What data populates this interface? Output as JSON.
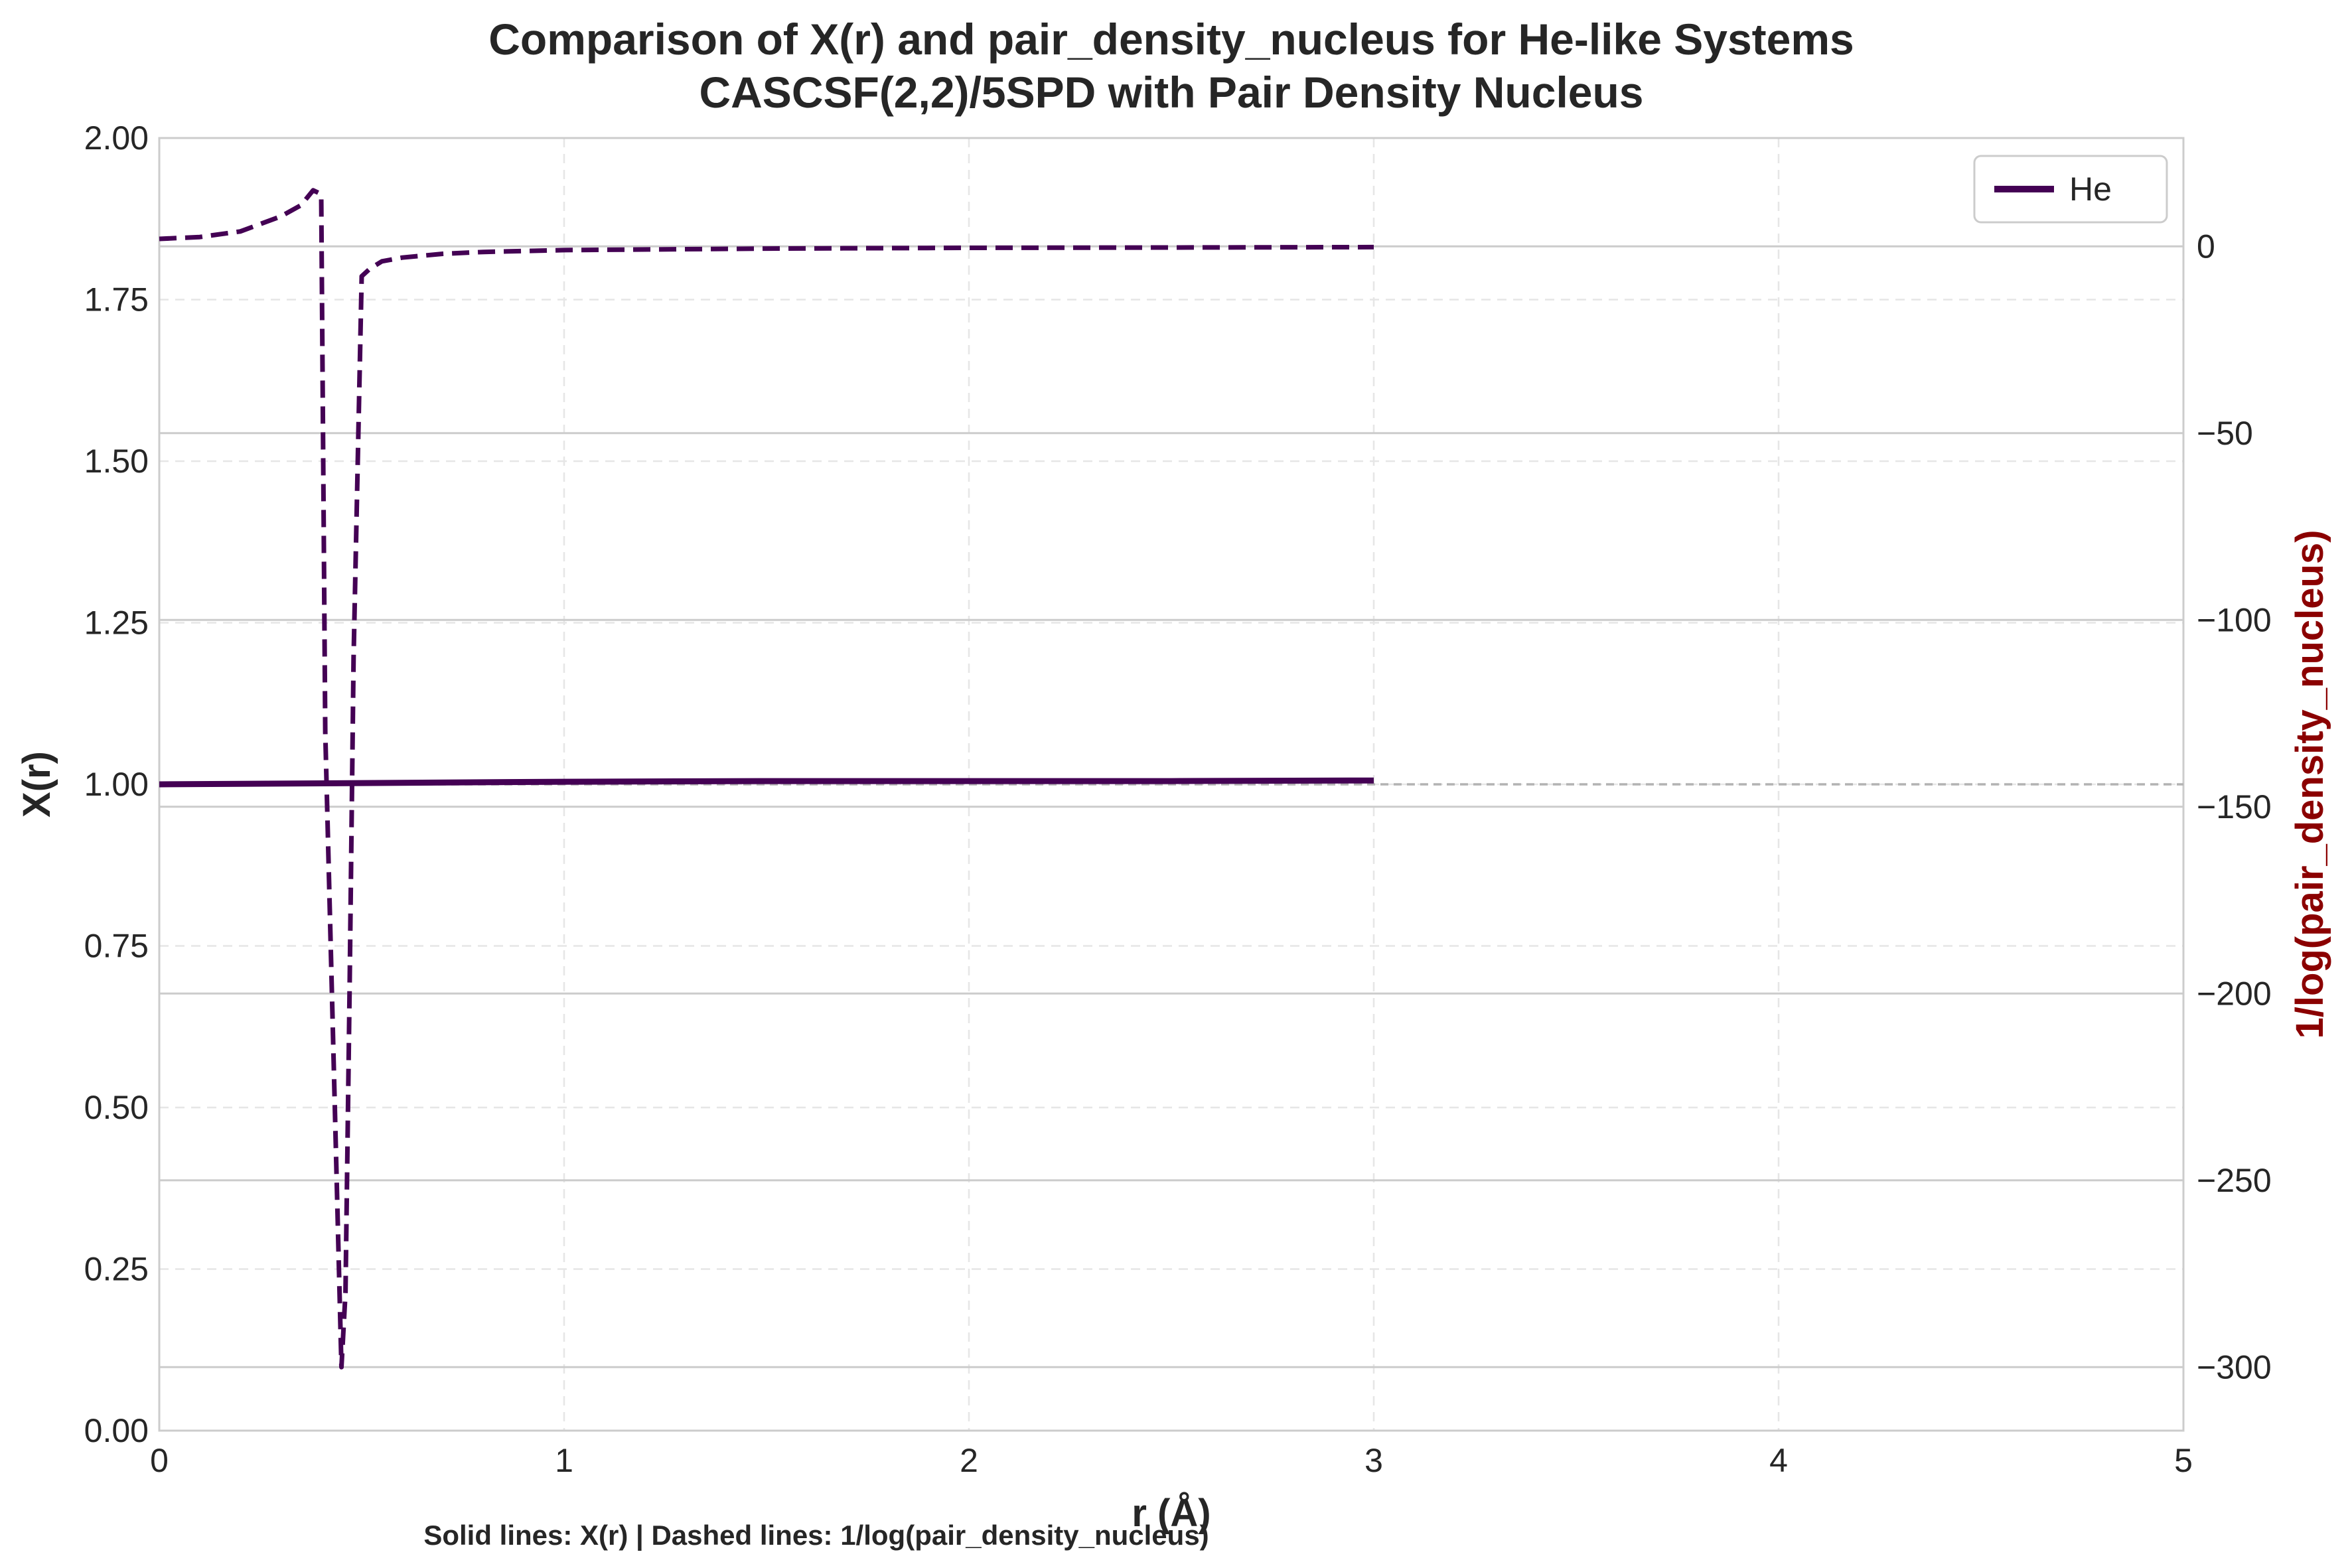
{
  "chart_data": {
    "type": "line",
    "title": "Comparison of X(r) and pair_density_nucleus for He-like Systems",
    "subtitle": "CASCSF(2,2)/5SPD with Pair Density Nucleus",
    "xlabel": "r (Å)",
    "ylabel": "X(r)",
    "ylabel_right": "1/log(pair_density_nucleus)",
    "xlim": [
      0,
      5
    ],
    "ylim": [
      0,
      2
    ],
    "ylim_right": [
      -317,
      29
    ],
    "x_ticks": [
      "0",
      "1",
      "2",
      "3",
      "4",
      "5"
    ],
    "y_ticks": [
      "0.00",
      "0.25",
      "0.50",
      "0.75",
      "1.00",
      "1.25",
      "1.50",
      "1.75",
      "2.00"
    ],
    "y_right_ticks": [
      "0",
      "−50",
      "−100",
      "−150",
      "−200",
      "−250",
      "−300"
    ],
    "grid": true,
    "legend_position": "top-right",
    "reference_line_y": 1.0,
    "footnote": "Solid lines: X(r)  |  Dashed lines: 1/log(pair_density_nucleus)",
    "series": [
      {
        "name": "He",
        "axis": "left",
        "style": "solid",
        "color": "#440154",
        "x": [
          0,
          0.5,
          1.0,
          1.5,
          2.0,
          2.5,
          3.0
        ],
        "y": [
          1.0,
          1.002,
          1.004,
          1.005,
          1.005,
          1.005,
          1.006
        ]
      },
      {
        "axis": "right",
        "style": "dashed",
        "color": "#440154",
        "x": [
          0,
          0.1,
          0.2,
          0.3,
          0.35,
          0.38,
          0.4,
          0.41,
          0.45,
          0.46,
          0.47,
          0.48,
          0.5,
          0.52,
          0.55,
          0.6,
          0.7,
          0.8,
          1.0,
          1.5,
          2.0,
          2.5,
          3.0
        ],
        "y": [
          2,
          2.5,
          4,
          8,
          11,
          15,
          14,
          -130,
          -300,
          -280,
          -200,
          -110,
          -8,
          -6,
          -4,
          -3,
          -2,
          -1.5,
          -1,
          -0.6,
          -0.4,
          -0.3,
          -0.2
        ]
      }
    ]
  }
}
